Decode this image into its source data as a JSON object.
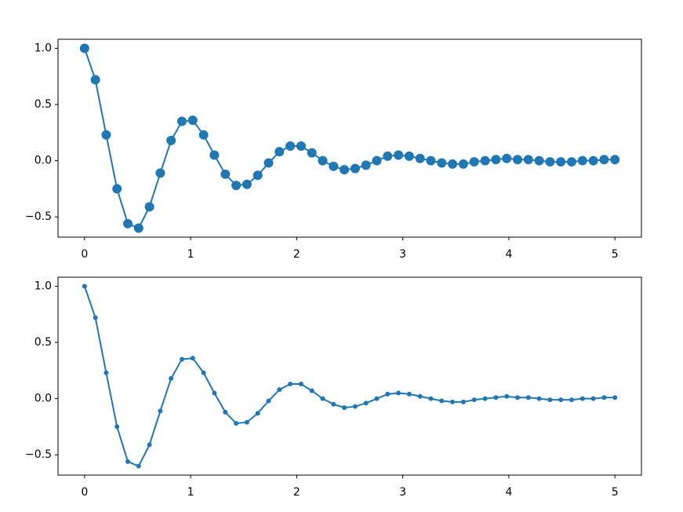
{
  "chart_data": [
    {
      "type": "line",
      "marker": "o",
      "color": "#1f77b4",
      "x": [
        0,
        0.102,
        0.204,
        0.306,
        0.408,
        0.51,
        0.612,
        0.714,
        0.816,
        0.918,
        1.02,
        1.122,
        1.224,
        1.327,
        1.429,
        1.531,
        1.633,
        1.735,
        1.837,
        1.939,
        2.041,
        2.143,
        2.245,
        2.347,
        2.449,
        2.551,
        2.653,
        2.755,
        2.857,
        2.959,
        3.061,
        3.163,
        3.265,
        3.367,
        3.469,
        3.571,
        3.673,
        3.776,
        3.878,
        3.98,
        4.082,
        4.184,
        4.286,
        4.388,
        4.49,
        4.592,
        4.694,
        4.796,
        4.898,
        5
      ],
      "values": [
        1,
        0.72,
        0.23,
        -0.25,
        -0.56,
        -0.6,
        -0.41,
        -0.11,
        0.18,
        0.35,
        0.36,
        0.23,
        0.05,
        -0.12,
        -0.22,
        -0.21,
        -0.13,
        -0.02,
        0.08,
        0.13,
        0.13,
        0.07,
        0,
        -0.05,
        -0.08,
        -0.07,
        -0.04,
        0,
        0.04,
        0.05,
        0.04,
        0.02,
        0,
        -0.02,
        -0.03,
        -0.03,
        -0.01,
        0,
        0.01,
        0.02,
        0.01,
        0.01,
        0,
        -0.01,
        -0.01,
        -0.01,
        0,
        0,
        0.01,
        0.01
      ],
      "xlim": [
        -0.25,
        5.25
      ],
      "xticks": [
        0,
        1,
        2,
        3,
        4,
        5
      ],
      "ylim": [
        -0.68,
        1.08
      ],
      "yticks": [
        {
          "value": -0.5,
          "label": "−0.5"
        },
        {
          "value": 0,
          "label": "0.0"
        },
        0.5,
        {
          "value": 1,
          "label": "1.0"
        }
      ],
      "grid": false
    },
    {
      "type": "line",
      "marker": ".",
      "color": "#1f77b4",
      "x": [
        0,
        0.102,
        0.204,
        0.306,
        0.408,
        0.51,
        0.612,
        0.714,
        0.816,
        0.918,
        1.02,
        1.122,
        1.224,
        1.327,
        1.429,
        1.531,
        1.633,
        1.735,
        1.837,
        1.939,
        2.041,
        2.143,
        2.245,
        2.347,
        2.449,
        2.551,
        2.653,
        2.755,
        2.857,
        2.959,
        3.061,
        3.163,
        3.265,
        3.367,
        3.469,
        3.571,
        3.673,
        3.776,
        3.878,
        3.98,
        4.082,
        4.184,
        4.286,
        4.388,
        4.49,
        4.592,
        4.694,
        4.796,
        4.898,
        5
      ],
      "values": [
        1,
        0.72,
        0.23,
        -0.25,
        -0.56,
        -0.6,
        -0.41,
        -0.11,
        0.18,
        0.35,
        0.36,
        0.23,
        0.05,
        -0.12,
        -0.22,
        -0.21,
        -0.13,
        -0.02,
        0.08,
        0.13,
        0.13,
        0.07,
        0,
        -0.05,
        -0.08,
        -0.07,
        -0.04,
        0,
        0.04,
        0.05,
        0.04,
        0.02,
        0,
        -0.02,
        -0.03,
        -0.03,
        -0.01,
        0,
        0.01,
        0.02,
        0.01,
        0.01,
        0,
        -0.01,
        -0.01,
        -0.01,
        0,
        0,
        0.01,
        0.01
      ],
      "xlim": [
        -0.25,
        5.25
      ],
      "xticks": [
        0,
        1,
        2,
        3,
        4,
        5
      ],
      "ylim": [
        -0.68,
        1.08
      ],
      "yticks": [
        {
          "value": -0.5,
          "label": "−0.5"
        },
        {
          "value": 0,
          "label": "0.0"
        },
        0.5,
        {
          "value": 1,
          "label": "1.0"
        }
      ],
      "grid": false
    }
  ]
}
